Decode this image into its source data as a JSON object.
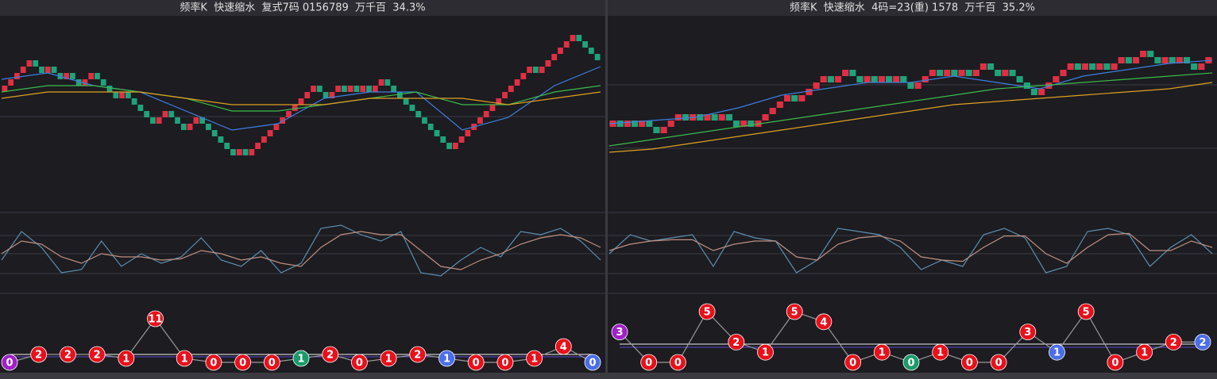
{
  "chart_data": [
    {
      "type": "renko",
      "title": "频率K  快速缩水  复式7码 0156789  万千百  34.3%",
      "ylim": [
        -19,
        12
      ],
      "closes": [
        0,
        1,
        2,
        3,
        4,
        5,
        4,
        3,
        4,
        3,
        2,
        3,
        2,
        1,
        2,
        3,
        2,
        1,
        0,
        -1,
        0,
        -1,
        -2,
        -3,
        -4,
        -5,
        -4,
        -3,
        -4,
        -5,
        -6,
        -5,
        -4,
        -5,
        -6,
        -7,
        -8,
        -9,
        -10,
        -9,
        -10,
        -9,
        -8,
        -7,
        -6,
        -5,
        -4,
        -3,
        -2,
        -1,
        0,
        1,
        0,
        -1,
        0,
        1,
        0,
        1,
        0,
        1,
        0,
        1,
        2,
        1,
        0,
        -1,
        -2,
        -3,
        -4,
        -5,
        -6,
        -7,
        -8,
        -9,
        -8,
        -7,
        -6,
        -5,
        -4,
        -3,
        -2,
        -1,
        0,
        1,
        2,
        3,
        4,
        3,
        4,
        5,
        6,
        7,
        8,
        9,
        8,
        7,
        6,
        5
      ],
      "up_color": "#e02f44",
      "down_color": "#1fa37a",
      "series": [
        {
          "color": "#3f7fe0",
          "values": [
            2,
            3,
            1,
            0,
            -3,
            -6,
            -5,
            -1,
            0,
            0,
            -6,
            -4,
            1,
            4
          ]
        },
        {
          "color": "#3dbb4a",
          "values": [
            0,
            1,
            1,
            0,
            -1,
            -3,
            -3,
            -2,
            -1,
            0,
            -2,
            -2,
            0,
            1
          ]
        },
        {
          "color": "#e0a020",
          "values": [
            -1,
            0,
            0,
            0,
            -1,
            -2,
            -2,
            -2,
            -1,
            -1,
            -1,
            -2,
            -1,
            0
          ]
        }
      ],
      "oscillator": {
        "ylim": [
          0,
          100
        ],
        "series": [
          {
            "color": "#5d8fb0",
            "values": [
              40,
              85,
              60,
              20,
              25,
              70,
              30,
              50,
              35,
              45,
              75,
              40,
              30,
              55,
              20,
              35,
              90,
              95,
              80,
              70,
              85,
              20,
              15,
              40,
              60,
              45,
              85,
              80,
              90,
              70,
              40
            ]
          },
          {
            "color": "#c09080",
            "values": [
              50,
              70,
              65,
              45,
              35,
              50,
              45,
              45,
              40,
              42,
              55,
              50,
              40,
              45,
              35,
              30,
              60,
              80,
              85,
              80,
              80,
              55,
              30,
              25,
              40,
              50,
              65,
              75,
              80,
              75,
              60
            ]
          }
        ]
      },
      "counts": {
        "ylim": [
          0,
          11
        ],
        "values": [
          0,
          2,
          2,
          2,
          1,
          11,
          1,
          0,
          0,
          0,
          1,
          2,
          0,
          1,
          2,
          1,
          0,
          0,
          1,
          4,
          0
        ],
        "colors": [
          "#a020c8",
          "#e8101a",
          "#e8101a",
          "#e8101a",
          "#e8101a",
          "#e8101a",
          "#e8101a",
          "#e8101a",
          "#e8101a",
          "#e8101a",
          "#1a9a6a",
          "#e8101a",
          "#e8101a",
          "#e8101a",
          "#e8101a",
          "#4a6ee8",
          "#e8101a",
          "#e8101a",
          "#e8101a",
          "#e8101a",
          "#4a6ee8"
        ]
      }
    },
    {
      "type": "renko",
      "title": "频率K  快速缩水  4码=23(重) 1578  万千百  35.2%",
      "ylim": [
        -13.5,
        17.5
      ],
      "closes": [
        0,
        1,
        0,
        1,
        0,
        1,
        0,
        -1,
        0,
        1,
        2,
        1,
        2,
        1,
        2,
        1,
        2,
        1,
        0,
        1,
        0,
        1,
        2,
        3,
        4,
        5,
        4,
        5,
        6,
        7,
        8,
        7,
        8,
        9,
        8,
        7,
        8,
        7,
        8,
        7,
        8,
        7,
        6,
        7,
        8,
        9,
        8,
        9,
        8,
        9,
        8,
        9,
        10,
        9,
        8,
        9,
        8,
        7,
        6,
        5,
        6,
        7,
        8,
        9,
        10,
        9,
        10,
        9,
        10,
        9,
        10,
        11,
        10,
        11,
        12,
        11,
        10,
        11,
        10,
        11,
        10,
        9,
        10,
        11
      ],
      "up_color": "#e02f44",
      "down_color": "#1fa37a",
      "series": [
        {
          "color": "#3f7fe0",
          "values": [
            0.5,
            1,
            1.5,
            3,
            5,
            6,
            7,
            7,
            8,
            7,
            6,
            8,
            9,
            10,
            10.5
          ]
        },
        {
          "color": "#3dbb4a",
          "values": [
            -3,
            -2,
            -1,
            0,
            1,
            2,
            3,
            4,
            5,
            6,
            6.5,
            7,
            7.5,
            8,
            8.5
          ]
        },
        {
          "color": "#e0a020",
          "values": [
            -4,
            -3.5,
            -2.5,
            -1.5,
            -0.5,
            0.5,
            1.5,
            2.5,
            3.5,
            4,
            4.5,
            5,
            5.5,
            6,
            7
          ]
        }
      ],
      "oscillator": {
        "ylim": [
          0,
          100
        ],
        "series": [
          {
            "color": "#5d8fb0",
            "values": [
              50,
              80,
              70,
              75,
              80,
              30,
              85,
              75,
              70,
              20,
              40,
              90,
              85,
              80,
              60,
              25,
              40,
              30,
              80,
              90,
              75,
              20,
              30,
              85,
              90,
              80,
              30,
              60,
              80,
              50
            ]
          },
          {
            "color": "#c09080",
            "values": [
              55,
              65,
              70,
              72,
              72,
              55,
              65,
              70,
              70,
              45,
              40,
              65,
              75,
              78,
              70,
              45,
              40,
              38,
              60,
              78,
              78,
              50,
              35,
              60,
              80,
              82,
              55,
              55,
              70,
              60
            ]
          }
        ]
      },
      "counts": {
        "ylim": [
          0,
          5
        ],
        "values": [
          3,
          0,
          0,
          5,
          2,
          1,
          5,
          4,
          0,
          1,
          0,
          1,
          0,
          0,
          3,
          1,
          5,
          0,
          1,
          2,
          2
        ],
        "colors": [
          "#a020c8",
          "#e8101a",
          "#e8101a",
          "#e8101a",
          "#e8101a",
          "#e8101a",
          "#e8101a",
          "#e8101a",
          "#e8101a",
          "#e8101a",
          "#1a9a6a",
          "#e8101a",
          "#e8101a",
          "#e8101a",
          "#e8101a",
          "#4a6ee8",
          "#e8101a",
          "#e8101a",
          "#e8101a",
          "#e8101a",
          "#4a6ee8"
        ]
      }
    }
  ]
}
